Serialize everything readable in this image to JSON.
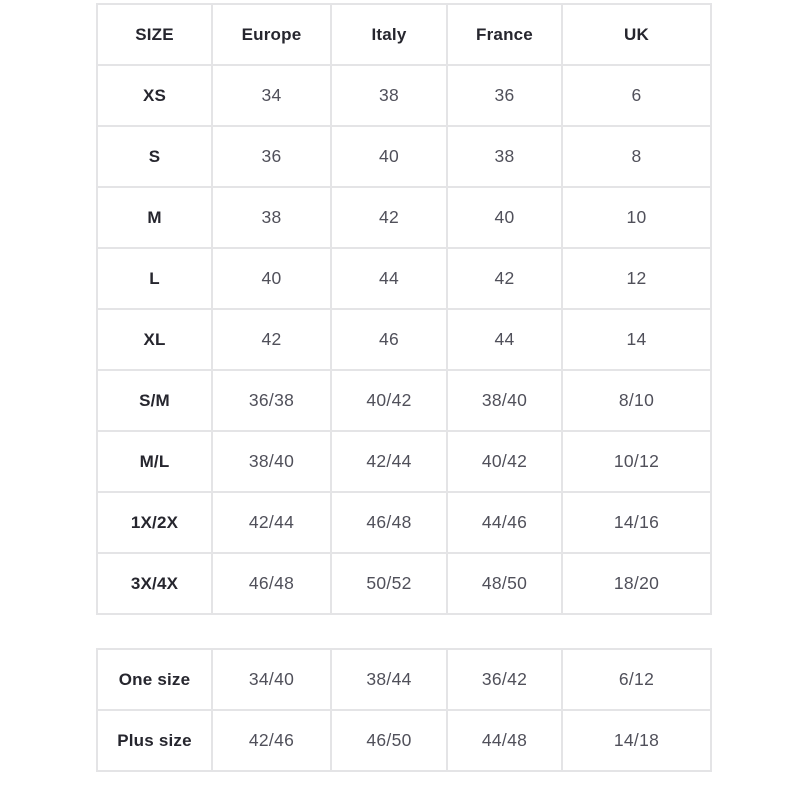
{
  "colors": {
    "background": "#ffffff",
    "border": "#e4e4e6",
    "header_text": "#26262e",
    "label_text": "#26262e",
    "value_text": "#50505a"
  },
  "size_table": {
    "headers": [
      "SIZE",
      "Europe",
      "Italy",
      "France",
      "UK"
    ],
    "rows": [
      {
        "size": "XS",
        "values": [
          "34",
          "38",
          "36",
          "6"
        ]
      },
      {
        "size": "S",
        "values": [
          "36",
          "40",
          "38",
          "8"
        ]
      },
      {
        "size": "M",
        "values": [
          "38",
          "42",
          "40",
          "10"
        ]
      },
      {
        "size": "L",
        "values": [
          "40",
          "44",
          "42",
          "12"
        ]
      },
      {
        "size": "XL",
        "values": [
          "42",
          "46",
          "44",
          "14"
        ]
      },
      {
        "size": "S/M",
        "values": [
          "36/38",
          "40/42",
          "38/40",
          "8/10"
        ]
      },
      {
        "size": "M/L",
        "values": [
          "38/40",
          "42/44",
          "40/42",
          "10/12"
        ]
      },
      {
        "size": "1X/2X",
        "values": [
          "42/44",
          "46/48",
          "44/46",
          "14/16"
        ]
      },
      {
        "size": "3X/4X",
        "values": [
          "46/48",
          "50/52",
          "48/50",
          "18/20"
        ]
      }
    ]
  },
  "special_table": {
    "rows": [
      {
        "size": "One size",
        "values": [
          "34/40",
          "38/44",
          "36/42",
          "6/12"
        ]
      },
      {
        "size": "Plus size",
        "values": [
          "42/46",
          "46/50",
          "44/48",
          "14/18"
        ]
      }
    ]
  }
}
